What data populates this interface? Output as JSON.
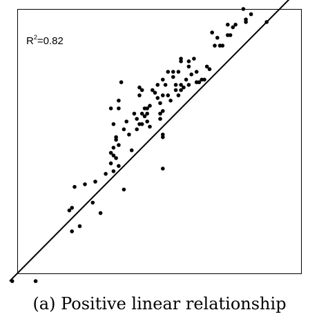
{
  "caption": "(a) Positive linear relationship",
  "annotation": {
    "base": "R",
    "sup": "2",
    "value": "=0.82"
  },
  "colors": {
    "points": "#000000",
    "line": "#000000",
    "frame": "#000000"
  },
  "chart_data": {
    "type": "scatter",
    "title": "",
    "xlabel": "",
    "ylabel": "",
    "xlim": [
      0,
      100
    ],
    "ylim": [
      0,
      100
    ],
    "grid": false,
    "points": [
      [
        -3,
        -4
      ],
      [
        6,
        -4
      ],
      [
        19,
        23
      ],
      [
        20,
        24
      ],
      [
        20,
        15
      ],
      [
        23,
        17
      ],
      [
        21,
        32
      ],
      [
        25,
        33
      ],
      [
        28,
        26
      ],
      [
        29,
        34
      ],
      [
        31,
        22
      ],
      [
        33,
        37
      ],
      [
        35,
        41
      ],
      [
        35,
        45
      ],
      [
        35,
        62
      ],
      [
        36,
        47
      ],
      [
        36,
        56
      ],
      [
        36,
        44
      ],
      [
        36,
        38
      ],
      [
        37,
        43
      ],
      [
        37,
        51
      ],
      [
        37,
        50
      ],
      [
        38,
        40
      ],
      [
        38,
        62
      ],
      [
        38,
        48
      ],
      [
        38,
        65
      ],
      [
        39,
        72
      ],
      [
        40,
        54
      ],
      [
        40,
        31
      ],
      [
        41,
        57
      ],
      [
        42,
        52
      ],
      [
        43,
        46
      ],
      [
        44,
        60
      ],
      [
        45,
        54
      ],
      [
        45,
        58
      ],
      [
        46,
        56
      ],
      [
        46,
        67
      ],
      [
        46,
        70
      ],
      [
        47,
        60
      ],
      [
        47,
        69
      ],
      [
        47,
        56
      ],
      [
        48,
        62
      ],
      [
        48,
        59
      ],
      [
        49,
        60
      ],
      [
        49,
        62
      ],
      [
        49,
        57
      ],
      [
        50,
        55
      ],
      [
        50,
        63
      ],
      [
        51,
        69
      ],
      [
        52,
        68
      ],
      [
        53,
        71
      ],
      [
        53,
        66
      ],
      [
        54,
        58
      ],
      [
        54,
        60
      ],
      [
        54,
        64
      ],
      [
        55,
        73
      ],
      [
        55,
        67
      ],
      [
        55,
        61
      ],
      [
        55,
        39
      ],
      [
        55,
        52
      ],
      [
        55,
        51
      ],
      [
        56,
        71
      ],
      [
        57,
        67
      ],
      [
        57,
        76
      ],
      [
        58,
        65
      ],
      [
        59,
        74
      ],
      [
        59,
        76
      ],
      [
        60,
        69
      ],
      [
        60,
        71
      ],
      [
        61,
        67
      ],
      [
        61,
        76
      ],
      [
        62,
        71
      ],
      [
        62,
        69
      ],
      [
        62,
        81
      ],
      [
        62,
        80
      ],
      [
        63,
        70
      ],
      [
        64,
        73
      ],
      [
        65,
        71
      ],
      [
        65,
        78
      ],
      [
        65,
        80
      ],
      [
        66,
        75
      ],
      [
        67,
        81
      ],
      [
        68,
        76
      ],
      [
        68,
        72
      ],
      [
        69,
        72
      ],
      [
        70,
        73
      ],
      [
        71,
        73
      ],
      [
        72,
        78
      ],
      [
        73,
        77
      ],
      [
        74,
        91
      ],
      [
        75,
        86
      ],
      [
        76,
        89
      ],
      [
        77,
        86
      ],
      [
        78,
        86
      ],
      [
        80,
        90
      ],
      [
        80,
        94
      ],
      [
        81,
        90
      ],
      [
        82,
        93
      ],
      [
        83,
        94
      ],
      [
        86,
        100
      ],
      [
        89,
        98
      ],
      [
        87,
        95
      ],
      [
        87,
        96
      ],
      [
        95,
        95
      ]
    ],
    "fit_line": {
      "x": [
        0,
        100
      ],
      "y": [
        0,
        100
      ]
    },
    "annotations": [
      "R2=0.82"
    ]
  }
}
